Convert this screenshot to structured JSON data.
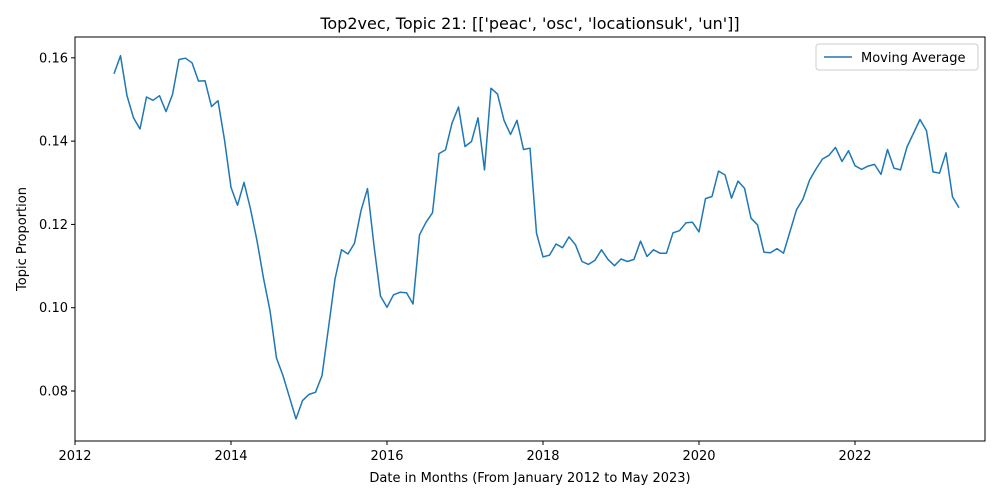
{
  "chart_data": {
    "type": "line",
    "title": "Top2vec, Topic 21: [['peac', 'osc', 'locationsuk', 'un']]",
    "xlabel": "Date in Months (From January 2012 to May 2023)",
    "ylabel": "Topic Proportion",
    "xlim": [
      "2012-01",
      "2023-09"
    ],
    "ylim": [
      0.068,
      0.165
    ],
    "x_ticks": [
      {
        "value": "2012-01",
        "label": "2012"
      },
      {
        "value": "2014-01",
        "label": "2014"
      },
      {
        "value": "2016-01",
        "label": "2016"
      },
      {
        "value": "2018-01",
        "label": "2018"
      },
      {
        "value": "2020-01",
        "label": "2020"
      },
      {
        "value": "2022-01",
        "label": "2022"
      }
    ],
    "y_ticks": [
      {
        "value": 0.08,
        "label": "0.08"
      },
      {
        "value": 0.1,
        "label": "0.10"
      },
      {
        "value": 0.12,
        "label": "0.12"
      },
      {
        "value": 0.14,
        "label": "0.14"
      },
      {
        "value": 0.16,
        "label": "0.16"
      }
    ],
    "grid": false,
    "legend": {
      "position": "top-right"
    },
    "series": [
      {
        "name": "Moving Average",
        "color": "#1f77b4",
        "x": [
          "2012-07",
          "2012-08",
          "2012-09",
          "2012-10",
          "2012-11",
          "2012-12",
          "2013-01",
          "2013-02",
          "2013-03",
          "2013-04",
          "2013-05",
          "2013-06",
          "2013-07",
          "2013-08",
          "2013-09",
          "2013-10",
          "2013-11",
          "2013-12",
          "2014-01",
          "2014-02",
          "2014-03",
          "2014-04",
          "2014-05",
          "2014-06",
          "2014-07",
          "2014-08",
          "2014-09",
          "2014-10",
          "2014-11",
          "2014-12",
          "2015-01",
          "2015-02",
          "2015-03",
          "2015-04",
          "2015-05",
          "2015-06",
          "2015-07",
          "2015-08",
          "2015-09",
          "2015-10",
          "2015-11",
          "2015-12",
          "2016-01",
          "2016-02",
          "2016-03",
          "2016-04",
          "2016-05",
          "2016-06",
          "2016-07",
          "2016-08",
          "2016-09",
          "2016-10",
          "2016-11",
          "2016-12",
          "2017-01",
          "2017-02",
          "2017-03",
          "2017-04",
          "2017-05",
          "2017-06",
          "2017-07",
          "2017-08",
          "2017-09",
          "2017-10",
          "2017-11",
          "2017-12",
          "2018-01",
          "2018-02",
          "2018-03",
          "2018-04",
          "2018-05",
          "2018-06",
          "2018-07",
          "2018-08",
          "2018-09",
          "2018-10",
          "2018-11",
          "2018-12",
          "2019-01",
          "2019-02",
          "2019-03",
          "2019-04",
          "2019-05",
          "2019-06",
          "2019-07",
          "2019-08",
          "2019-09",
          "2019-10",
          "2019-11",
          "2019-12",
          "2020-01",
          "2020-02",
          "2020-03",
          "2020-04",
          "2020-05",
          "2020-06",
          "2020-07",
          "2020-08",
          "2020-09",
          "2020-10",
          "2020-11",
          "2020-12",
          "2021-01",
          "2021-02",
          "2021-03",
          "2021-04",
          "2021-05",
          "2021-06",
          "2021-07",
          "2021-08",
          "2021-09",
          "2021-10",
          "2021-11",
          "2021-12",
          "2022-01",
          "2022-02",
          "2022-03",
          "2022-04",
          "2022-05",
          "2022-06",
          "2022-07",
          "2022-08",
          "2022-09",
          "2022-10",
          "2022-11",
          "2022-12",
          "2023-01",
          "2023-02",
          "2023-03",
          "2023-04",
          "2023-05"
        ],
        "values": [
          0.1562,
          0.1605,
          0.1509,
          0.1456,
          0.1429,
          0.1506,
          0.1498,
          0.1509,
          0.1471,
          0.1512,
          0.1596,
          0.1599,
          0.1588,
          0.1544,
          0.1545,
          0.1483,
          0.1497,
          0.1403,
          0.1289,
          0.1246,
          0.1301,
          0.1237,
          0.1161,
          0.1071,
          0.0993,
          0.0879,
          0.0837,
          0.0785,
          0.0733,
          0.0777,
          0.0792,
          0.0797,
          0.0837,
          0.0952,
          0.1069,
          0.1139,
          0.1129,
          0.1155,
          0.1233,
          0.1286,
          0.1149,
          0.1028,
          0.1001,
          0.1031,
          0.1037,
          0.1036,
          0.1009,
          0.1175,
          0.1205,
          0.1228,
          0.137,
          0.1379,
          0.1443,
          0.1482,
          0.1387,
          0.1399,
          0.1456,
          0.1331,
          0.1527,
          0.1513,
          0.145,
          0.1416,
          0.145,
          0.138,
          0.1383,
          0.1179,
          0.1122,
          0.1126,
          0.1153,
          0.1144,
          0.117,
          0.1151,
          0.1111,
          0.1104,
          0.1114,
          0.1139,
          0.1116,
          0.1101,
          0.1117,
          0.1111,
          0.1116,
          0.116,
          0.1123,
          0.1139,
          0.1131,
          0.1131,
          0.118,
          0.1185,
          0.1204,
          0.1205,
          0.1182,
          0.1262,
          0.1267,
          0.1328,
          0.1319,
          0.1263,
          0.1304,
          0.1287,
          0.1215,
          0.1199,
          0.1133,
          0.1132,
          0.1142,
          0.1131,
          0.1183,
          0.1235,
          0.1261,
          0.1306,
          0.1333,
          0.1357,
          0.1366,
          0.1385,
          0.1351,
          0.1377,
          0.1341,
          0.1332,
          0.134,
          0.1344,
          0.132,
          0.138,
          0.1335,
          0.1331,
          0.1386,
          0.1419,
          0.1452,
          0.1425,
          0.1326,
          0.1323,
          0.1372,
          0.1266,
          0.124
        ]
      }
    ]
  }
}
